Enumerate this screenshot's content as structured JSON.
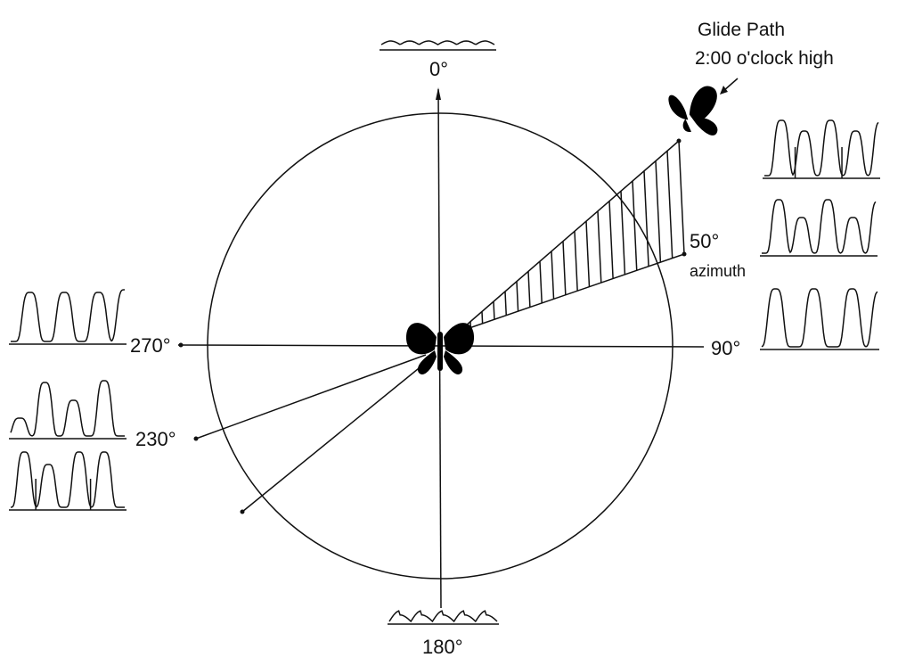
{
  "labels": {
    "north": "0°",
    "south": "180°",
    "west": "270°",
    "east": "90°",
    "southwest": "230°",
    "azimuth_value": "50°",
    "azimuth": "azimuth"
  },
  "glide_path": {
    "title": "Glide Path",
    "subtitle": "2:00 o'clock high"
  }
}
